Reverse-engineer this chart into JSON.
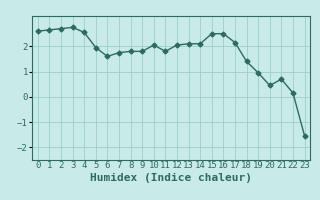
{
  "x": [
    0,
    1,
    2,
    3,
    4,
    5,
    6,
    7,
    8,
    9,
    10,
    11,
    12,
    13,
    14,
    15,
    16,
    17,
    18,
    19,
    20,
    21,
    22,
    23
  ],
  "y": [
    2.6,
    2.65,
    2.7,
    2.75,
    2.55,
    1.95,
    1.6,
    1.75,
    1.8,
    1.8,
    2.05,
    1.8,
    2.05,
    2.1,
    2.1,
    2.5,
    2.5,
    2.15,
    1.4,
    0.95,
    0.45,
    0.7,
    0.15,
    -1.55
  ],
  "line_color": "#2e6b5e",
  "marker": "D",
  "markersize": 2.5,
  "linewidth": 1.0,
  "bg_color": "#c8eae8",
  "grid_color": "#9ecfca",
  "xlabel": "Humidex (Indice chaleur)",
  "xlabel_fontsize": 8,
  "ylim": [
    -2.5,
    3.2
  ],
  "yticks": [
    -2,
    -1,
    0,
    1,
    2
  ],
  "xtick_labels": [
    "0",
    "1",
    "2",
    "3",
    "4",
    "5",
    "6",
    "7",
    "8",
    "9",
    "10",
    "11",
    "12",
    "13",
    "14",
    "15",
    "16",
    "17",
    "18",
    "19",
    "20",
    "21",
    "22",
    "23"
  ],
  "tick_fontsize": 6.5
}
